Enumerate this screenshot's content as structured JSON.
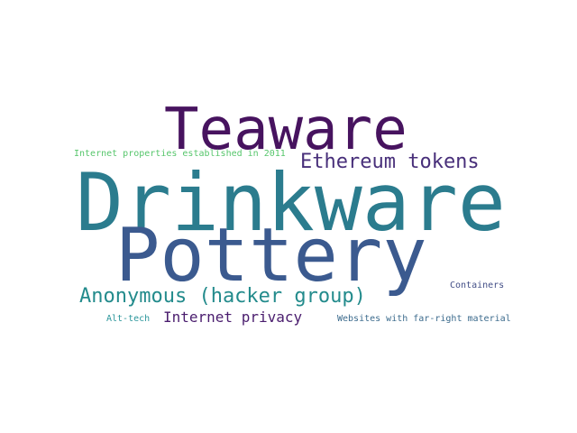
{
  "words": [
    {
      "text": "Teaware",
      "color": "#47135f"
    },
    {
      "text": "Ethereum tokens",
      "color": "#482f7a"
    },
    {
      "text": "Internet properties established in 2011",
      "color": "#57c66c"
    },
    {
      "text": "Drinkware",
      "color": "#2b7c8e"
    },
    {
      "text": "Pottery",
      "color": "#3b5a8f"
    },
    {
      "text": "Anonymous (hacker group)",
      "color": "#238b8c"
    },
    {
      "text": "Containers",
      "color": "#434f87"
    },
    {
      "text": "Internet privacy",
      "color": "#4a1d6e"
    },
    {
      "text": "Alt-tech",
      "color": "#2b969b"
    },
    {
      "text": "Websites with far-right material",
      "color": "#3c6b8d"
    }
  ]
}
